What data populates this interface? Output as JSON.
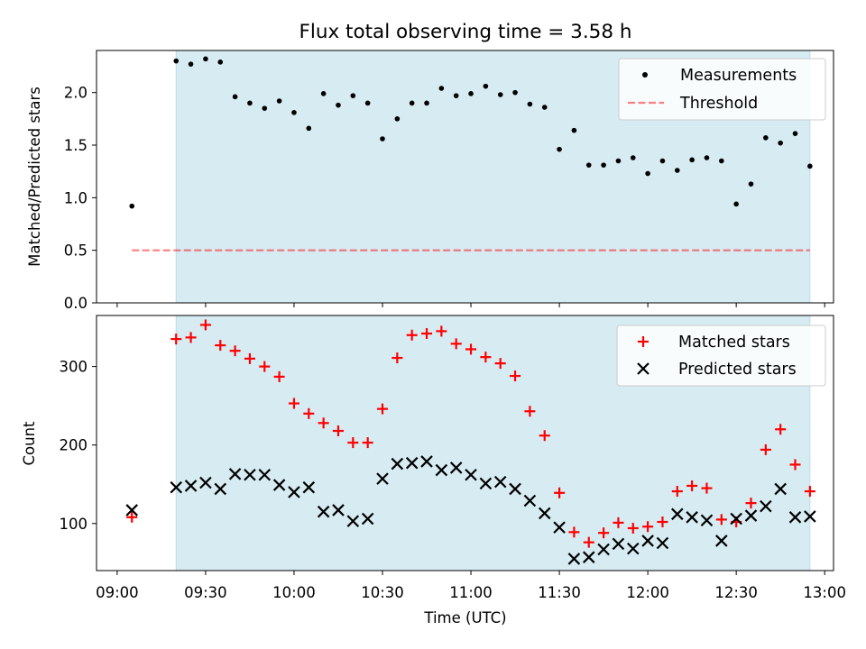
{
  "title": "Flux total observing time = 3.58 h",
  "x_axis": {
    "label": "Time (UTC)",
    "ticks": [
      "09:00",
      "09:30",
      "10:00",
      "10:30",
      "11:00",
      "11:30",
      "12:00",
      "12:30",
      "13:00"
    ],
    "range": [
      "08:53",
      "13:03"
    ]
  },
  "colors": {
    "shade": "#add8e6",
    "measurements": "#000000",
    "threshold": "#ff0000",
    "matched": "#ff0000",
    "predicted": "#000000"
  },
  "chart_data": [
    {
      "type": "scatter",
      "ylabel": "Matched/Predicted stars",
      "ylim": [
        0,
        2.4
      ],
      "yticks": [
        "0.0",
        "0.5",
        "1.0",
        "1.5",
        "2.0"
      ],
      "grid": false,
      "legend": "top-right",
      "shaded_span": [
        "09:20",
        "12:55"
      ],
      "series": [
        {
          "name": "Measurements",
          "marker": "dot",
          "x": [
            "09:05",
            "09:20",
            "09:25",
            "09:30",
            "09:35",
            "09:40",
            "09:45",
            "09:50",
            "09:55",
            "10:00",
            "10:05",
            "10:10",
            "10:15",
            "10:20",
            "10:25",
            "10:30",
            "10:35",
            "10:40",
            "10:45",
            "10:50",
            "10:55",
            "11:00",
            "11:05",
            "11:10",
            "11:15",
            "11:20",
            "11:25",
            "11:30",
            "11:35",
            "11:40",
            "11:45",
            "11:50",
            "11:55",
            "12:00",
            "12:05",
            "12:10",
            "12:15",
            "12:20",
            "12:25",
            "12:30",
            "12:35",
            "12:40",
            "12:45",
            "12:50",
            "12:55"
          ],
          "y": [
            0.92,
            2.3,
            2.27,
            2.32,
            2.29,
            1.96,
            1.9,
            1.85,
            1.92,
            1.81,
            1.66,
            1.99,
            1.88,
            1.97,
            1.9,
            1.56,
            1.75,
            1.9,
            1.9,
            2.04,
            1.97,
            1.99,
            2.06,
            1.98,
            2.0,
            1.89,
            1.86,
            1.46,
            1.64,
            1.31,
            1.31,
            1.35,
            1.38,
            1.23,
            1.35,
            1.26,
            1.36,
            1.38,
            1.35,
            0.94,
            1.13,
            1.57,
            1.52,
            1.61,
            1.3
          ]
        },
        {
          "name": "Threshold",
          "style": "dashed line",
          "x": [
            "09:05",
            "12:55"
          ],
          "y": [
            0.5,
            0.5
          ]
        }
      ]
    },
    {
      "type": "scatter",
      "ylabel": "Count",
      "ylim": [
        40,
        365
      ],
      "yticks": [
        "100",
        "200",
        "300"
      ],
      "grid": false,
      "legend": "top-right",
      "shaded_span": [
        "09:20",
        "12:55"
      ],
      "x": [
        "09:05",
        "09:20",
        "09:25",
        "09:30",
        "09:35",
        "09:40",
        "09:45",
        "09:50",
        "09:55",
        "10:00",
        "10:05",
        "10:10",
        "10:15",
        "10:20",
        "10:25",
        "10:30",
        "10:35",
        "10:40",
        "10:45",
        "10:50",
        "10:55",
        "11:00",
        "11:05",
        "11:10",
        "11:15",
        "11:20",
        "11:25",
        "11:30",
        "11:35",
        "11:40",
        "11:45",
        "11:50",
        "11:55",
        "12:00",
        "12:05",
        "12:10",
        "12:15",
        "12:20",
        "12:25",
        "12:30",
        "12:35",
        "12:40",
        "12:45",
        "12:50",
        "12:55"
      ],
      "series": [
        {
          "name": "Matched stars",
          "marker": "plus",
          "values": [
            108,
            335,
            337,
            353,
            327,
            320,
            310,
            300,
            287,
            253,
            240,
            228,
            218,
            203,
            203,
            246,
            311,
            340,
            342,
            345,
            329,
            322,
            312,
            304,
            288,
            243,
            212,
            139,
            89,
            76,
            88,
            101,
            94,
            96,
            102,
            141,
            148,
            145,
            105,
            102,
            126,
            194,
            220,
            175,
            141
          ]
        },
        {
          "name": "Predicted stars",
          "marker": "x",
          "values": [
            117,
            146,
            148,
            152,
            144,
            163,
            162,
            162,
            149,
            140,
            146,
            115,
            117,
            103,
            106,
            157,
            176,
            177,
            179,
            168,
            171,
            162,
            151,
            153,
            144,
            129,
            113,
            95,
            55,
            57,
            67,
            74,
            68,
            78,
            75,
            112,
            108,
            104,
            78,
            106,
            110,
            122,
            144,
            108,
            109
          ]
        }
      ]
    }
  ]
}
